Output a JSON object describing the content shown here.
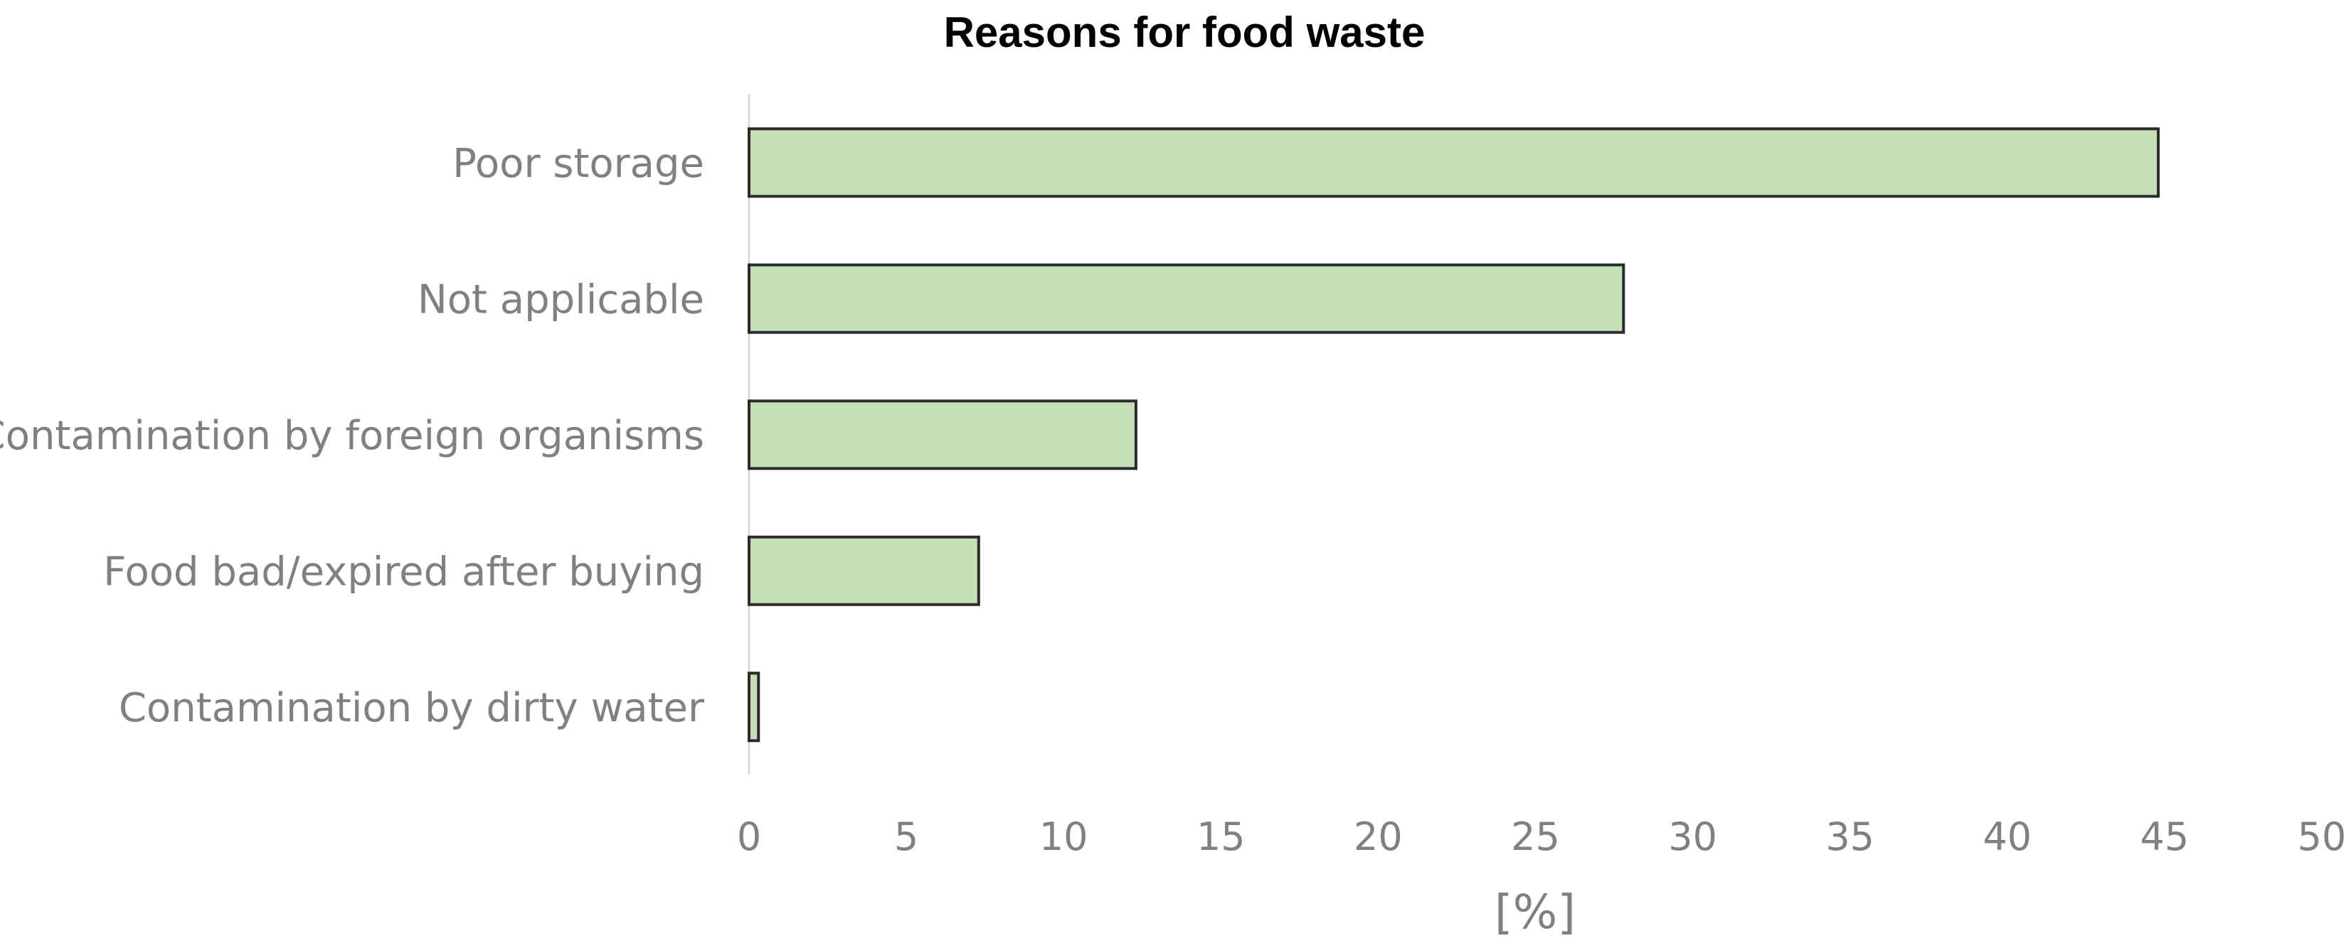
{
  "chart_data": {
    "type": "bar",
    "orientation": "horizontal",
    "title": "Reasons for food waste",
    "xlabel": "[%]",
    "ylabel": "",
    "categories": [
      "Poor storage",
      "Not applicable",
      "Contamination by foreign organisms",
      "Food bad/expired after buying",
      "Contamination by dirty water"
    ],
    "values": [
      44.8,
      27.8,
      12.3,
      7.3,
      0.3
    ],
    "xlim": [
      0,
      50
    ],
    "xticks": [
      "0",
      "5",
      "10",
      "15",
      "20",
      "25",
      "30",
      "35",
      "40",
      "45",
      "50"
    ],
    "grid": false,
    "legend": "none",
    "colors": {
      "bar_fill": "#c5e0b4",
      "bar_stroke": "#2b2b2b",
      "text": "#808080",
      "axis": "#d9d9d9"
    }
  }
}
